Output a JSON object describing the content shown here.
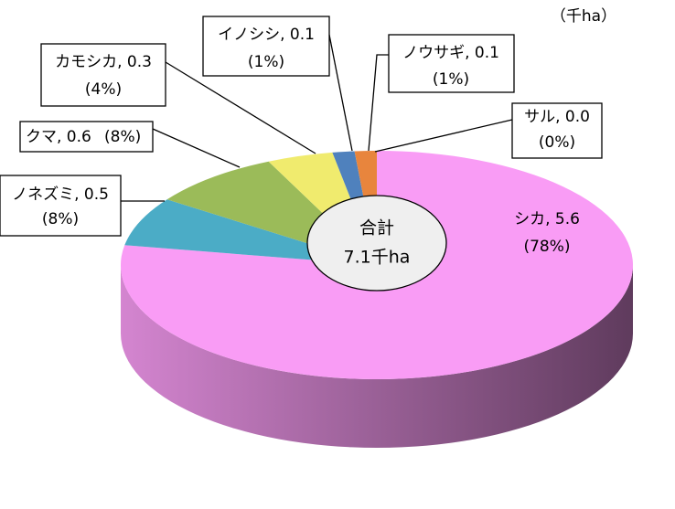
{
  "chart_data": {
    "type": "pie",
    "unit": "（千ha）",
    "values": [
      5.6,
      0.5,
      0.6,
      0.3,
      0.1,
      0.1,
      0.0
    ],
    "value_labels": [
      "シカ, 5.6",
      "ノネズミ, 0.5",
      "クマ, 0.6",
      "カモシカ, 0.3",
      "イノシシ, 0.1",
      "ノウサギ, 0.1",
      "サル, 0.0"
    ],
    "percent_labels": [
      "(78%)",
      "(8%)",
      "(8%)",
      "(4%)",
      "(1%)",
      "(1%)",
      "(0%)"
    ],
    "colors": [
      "#f99cf5",
      "#4bacc6",
      "#9bbb59",
      "#f0eb6e",
      "#4f81bd",
      "#e8853d",
      "#c0504d"
    ],
    "center_label": {
      "title": "合計",
      "total": "7.1千ha"
    }
  }
}
